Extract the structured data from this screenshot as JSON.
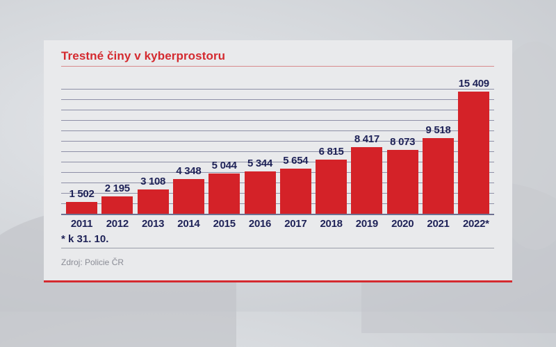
{
  "chart_data": {
    "type": "bar",
    "title": "Trestné činy v kyberprostoru",
    "categories": [
      "2011",
      "2012",
      "2013",
      "2014",
      "2015",
      "2016",
      "2017",
      "2018",
      "2019",
      "2020",
      "2021",
      "2022*"
    ],
    "values": [
      1502,
      2195,
      3108,
      4348,
      5044,
      5344,
      5654,
      6815,
      8417,
      8073,
      9518,
      15409
    ],
    "value_labels": [
      "1 502",
      "2 195",
      "3 108",
      "4 348",
      "5 044",
      "5 344",
      "5 654",
      "6 815",
      "8 417",
      "8 073",
      "9 518",
      "15 409"
    ],
    "xlabel": "",
    "ylabel": "",
    "ylim": [
      0,
      16000
    ],
    "grid": true,
    "legend": null,
    "bar_color": "#d42228",
    "label_color": "#1e2257",
    "footnote": "* k 31. 10.",
    "source": "Zdroj: Policie ČR"
  },
  "colors": {
    "accent": "#d42a2f",
    "text": "#1e2257",
    "card": "#e9eaec"
  }
}
